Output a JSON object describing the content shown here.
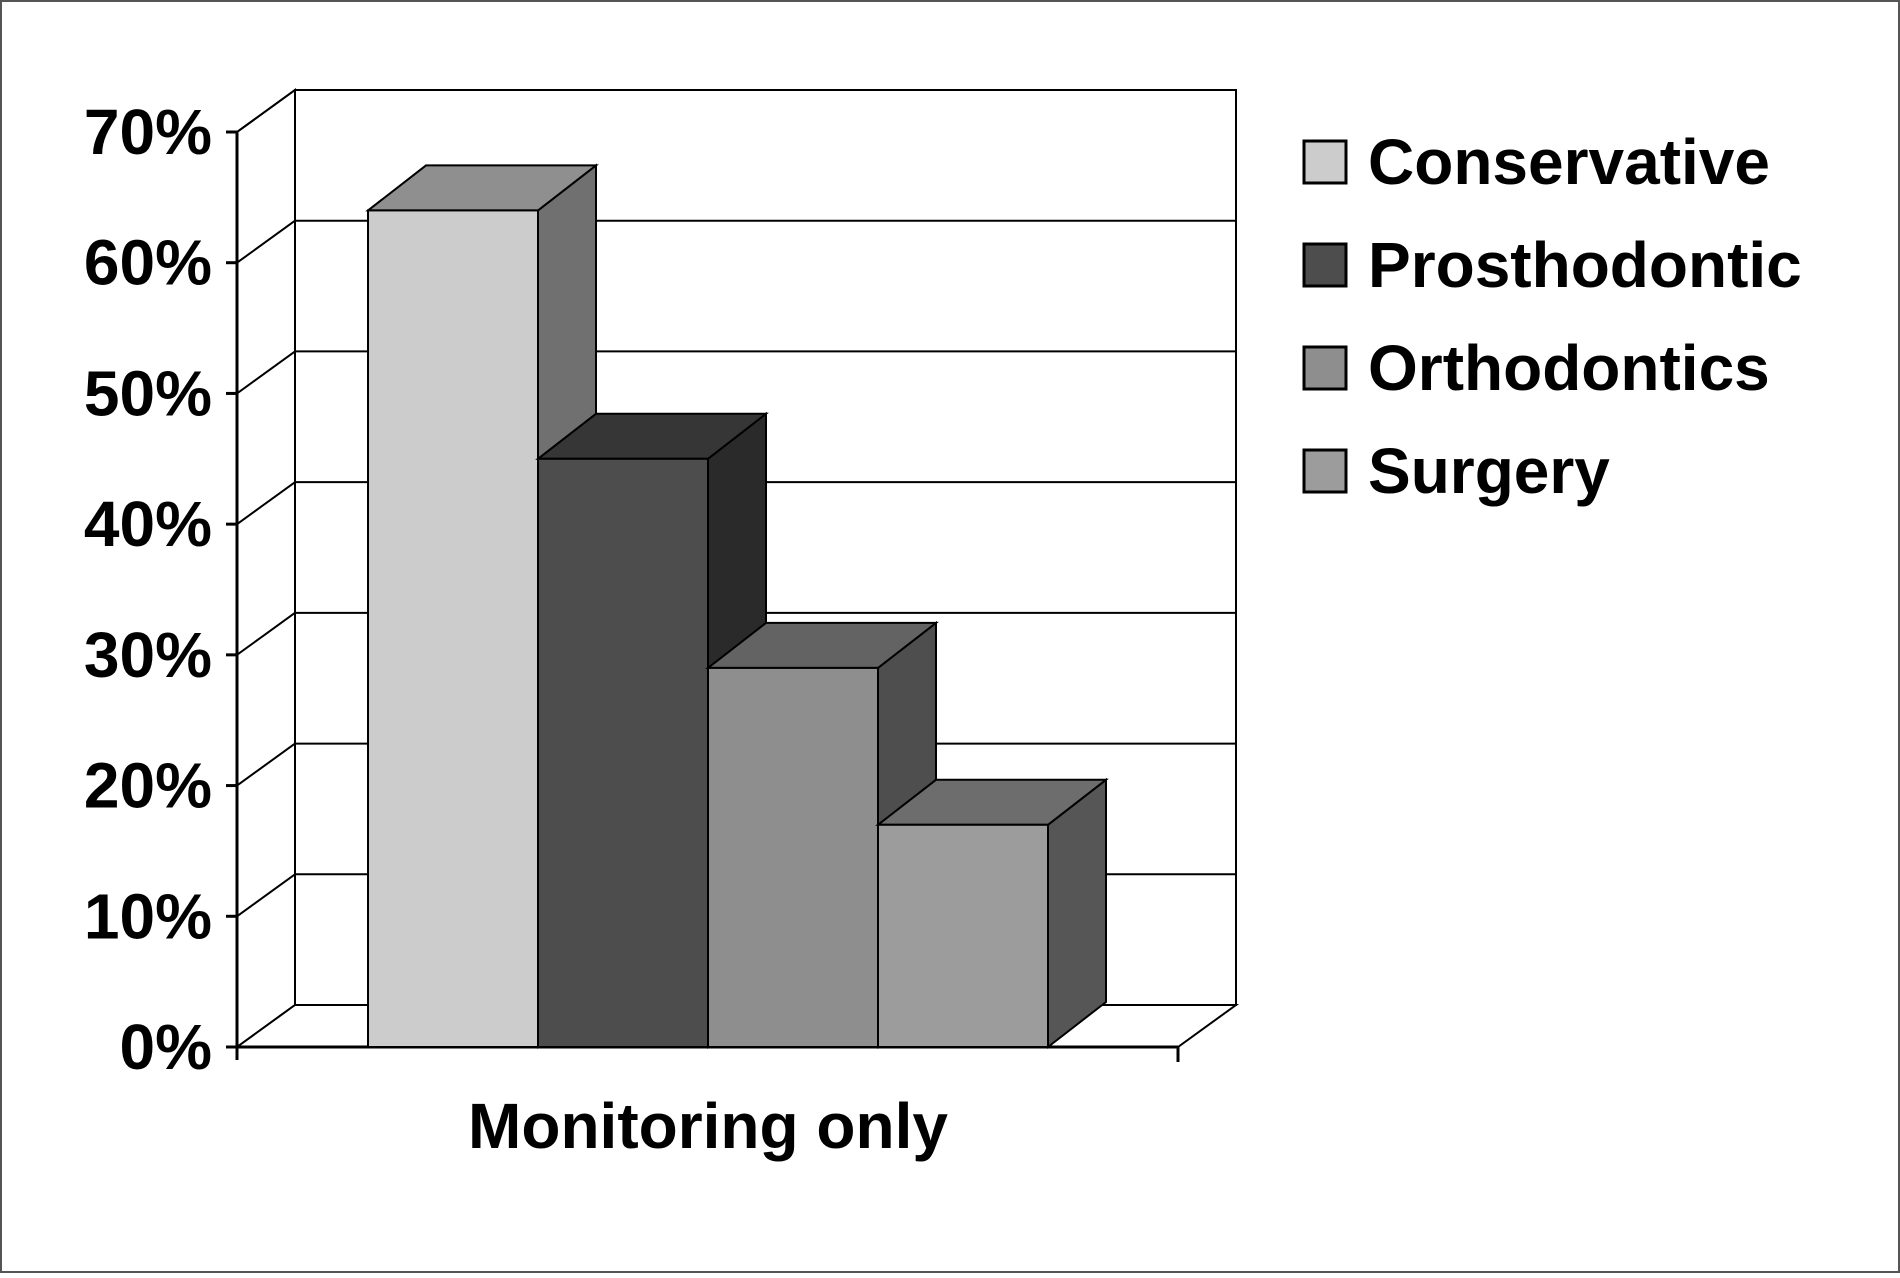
{
  "chart_data": {
    "type": "bar",
    "categories": [
      "Monitoring only"
    ],
    "series": [
      {
        "name": "Conservative",
        "values": [
          64
        ],
        "color": "#cccccc"
      },
      {
        "name": "Prosthodontic",
        "values": [
          45
        ],
        "color": "#4d4d4d"
      },
      {
        "name": "Orthodontics",
        "values": [
          29
        ],
        "color": "#8e8e8e"
      },
      {
        "name": "Surgery",
        "values": [
          17
        ],
        "color": "#9c9c9c"
      }
    ],
    "ylim": [
      0,
      70
    ],
    "yticks": [
      "0%",
      "10%",
      "20%",
      "30%",
      "40%",
      "50%",
      "60%",
      "70%"
    ],
    "xlabel": "Monitoring only",
    "grid": true,
    "three_d": true,
    "legend_position": "right"
  }
}
